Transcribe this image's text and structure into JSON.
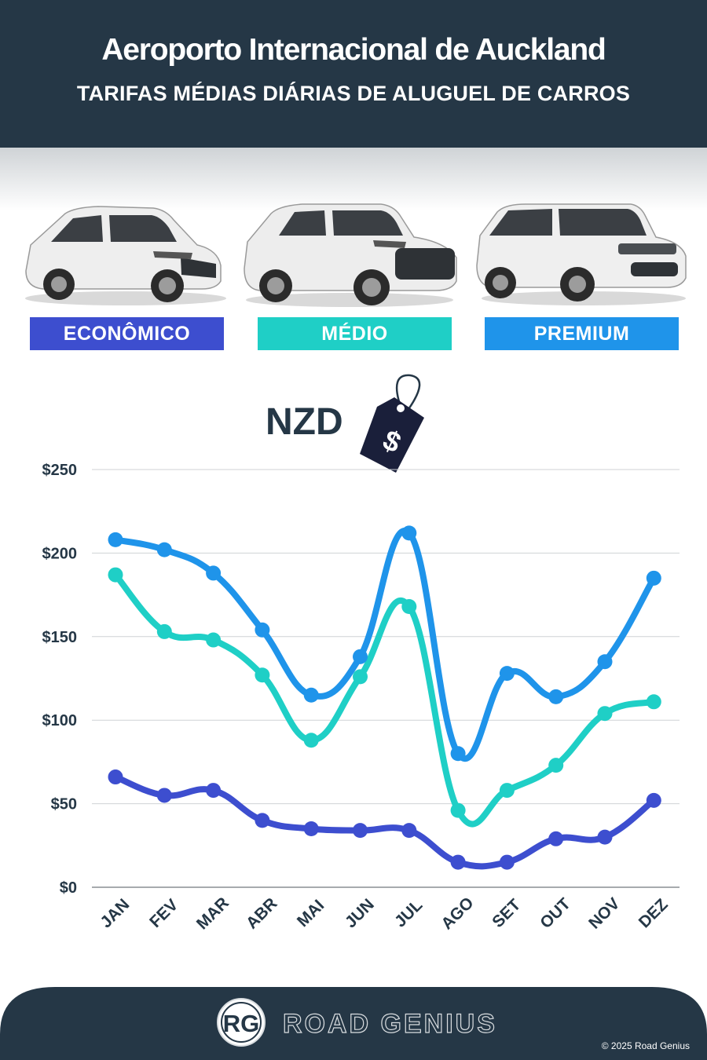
{
  "header": {
    "title": "Aeroporto Internacional de Auckland",
    "subtitle": "TARIFAS MÉDIAS DIÁRIAS DE ALUGUEL DE CARROS"
  },
  "categories": [
    {
      "label": "ECONÔMICO",
      "color": "#3d4ecf"
    },
    {
      "label": "MÉDIO",
      "color": "#1fcfc6"
    },
    {
      "label": "PREMIUM",
      "color": "#1f94ea"
    }
  ],
  "currency": {
    "label": "NZD",
    "tag_symbol": "$"
  },
  "chart_data": {
    "type": "line",
    "categories": [
      "JAN",
      "FEV",
      "MAR",
      "ABR",
      "MAI",
      "JUN",
      "JUL",
      "AGO",
      "SET",
      "OUT",
      "NOV",
      "DEZ"
    ],
    "series": [
      {
        "name": "PREMIUM",
        "color": "#1f94ea",
        "values": [
          208,
          202,
          188,
          154,
          115,
          138,
          212,
          80,
          128,
          114,
          135,
          185
        ]
      },
      {
        "name": "MÉDIO",
        "color": "#1fcfc6",
        "values": [
          187,
          153,
          148,
          127,
          88,
          126,
          168,
          46,
          58,
          73,
          104,
          111
        ]
      },
      {
        "name": "ECONÔMICO",
        "color": "#3d4ecf",
        "values": [
          66,
          55,
          58,
          40,
          35,
          34,
          34,
          15,
          15,
          29,
          30,
          52
        ]
      }
    ],
    "yticks": [
      "$0",
      "$50",
      "$100",
      "$150",
      "$200",
      "$250"
    ],
    "ylim": [
      0,
      250
    ],
    "grid": true
  },
  "footer": {
    "logo_letters": "RG",
    "brand": "ROAD GENIUS",
    "copyright": "© 2025 Road Genius",
    "background": "#253746"
  }
}
